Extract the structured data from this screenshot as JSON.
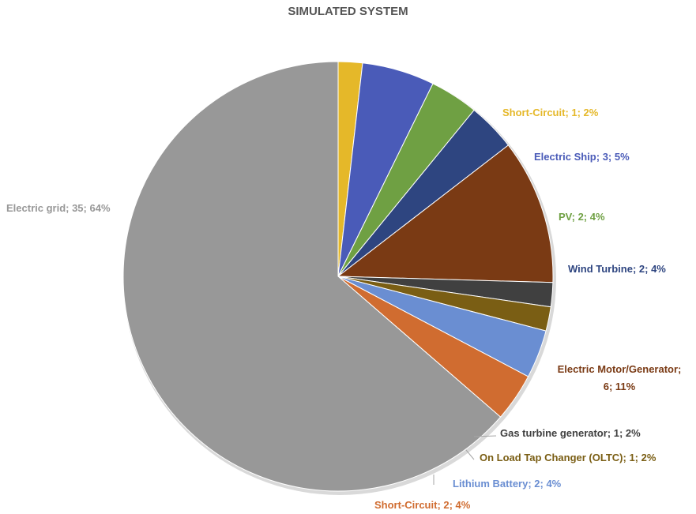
{
  "chart_data": {
    "type": "pie",
    "title": "SIMULATED SYSTEM",
    "slices": [
      {
        "label": "Short-Circuit; 1; 2%",
        "name": "Short-Circuit",
        "value": 1,
        "percent": 2,
        "color": "#E5B829",
        "label_color": "#E5B829"
      },
      {
        "label": "Electric Ship; 3; 5%",
        "name": "Electric Ship",
        "value": 3,
        "percent": 5,
        "color": "#4A5BB8",
        "label_color": "#4A5BB8"
      },
      {
        "label": "PV; 2; 4%",
        "name": "PV",
        "value": 2,
        "percent": 4,
        "color": "#6FA043",
        "label_color": "#6FA043"
      },
      {
        "label": "Wind Turbine; 2; 4%",
        "name": "Wind Turbine",
        "value": 2,
        "percent": 4,
        "color": "#2E4580",
        "label_color": "#2E4580"
      },
      {
        "label": "Electric Motor/Generator;\n6; 11%",
        "name": "Electric Motor/Generator",
        "value": 6,
        "percent": 11,
        "color": "#7A3A14",
        "label_color": "#7A3A14"
      },
      {
        "label": "Gas turbine generator; 1; 2%",
        "name": "Gas turbine generator",
        "value": 1,
        "percent": 2,
        "color": "#404040",
        "label_color": "#404040"
      },
      {
        "label": "On Load Tap Changer (OLTC); 1; 2%",
        "name": "On Load Tap Changer (OLTC)",
        "value": 1,
        "percent": 2,
        "color": "#7A5E14",
        "label_color": "#7A5E14"
      },
      {
        "label": "Lithium Battery; 2; 4%",
        "name": "Lithium Battery",
        "value": 2,
        "percent": 4,
        "color": "#6A8ED2",
        "label_color": "#6A8ED2"
      },
      {
        "label": "Short-Circuit; 2; 4%",
        "name": "Short-Circuit",
        "value": 2,
        "percent": 4,
        "color": "#D06C30",
        "label_color": "#D06C30"
      },
      {
        "label": "Electric grid; 35; 64%",
        "name": "Electric grid",
        "value": 35,
        "percent": 64,
        "color": "#989898",
        "label_color": "#989898"
      }
    ]
  }
}
